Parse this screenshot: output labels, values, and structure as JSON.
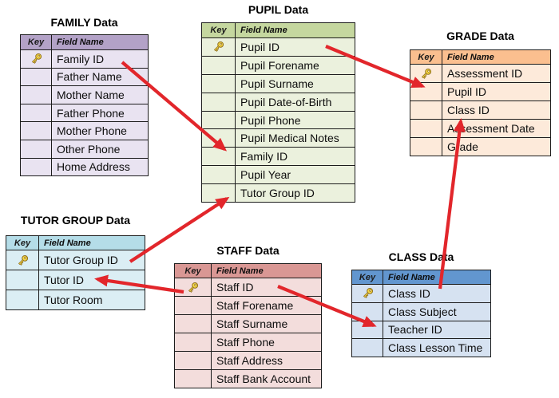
{
  "arrow_color": "#E2262B",
  "tables": [
    {
      "id": "family",
      "title": "FAMILY Data",
      "key_header": "Key",
      "field_header": "Field Name",
      "header_color": "#B3A2C7",
      "row_color": "#E9E3F1",
      "fields": [
        {
          "name": "Family ID",
          "key": true
        },
        {
          "name": "Father Name",
          "key": false
        },
        {
          "name": "Mother Name",
          "key": false
        },
        {
          "name": "Father Phone",
          "key": false
        },
        {
          "name": "Mother Phone",
          "key": false
        },
        {
          "name": "Other Phone",
          "key": false
        },
        {
          "name": "Home Address",
          "key": false
        }
      ]
    },
    {
      "id": "pupil",
      "title": "PUPIL Data",
      "key_header": "Key",
      "field_header": "Field Name",
      "header_color": "#C5D79F",
      "row_color": "#EBF1DD",
      "fields": [
        {
          "name": "Pupil ID",
          "key": true
        },
        {
          "name": "Pupil Forename",
          "key": false
        },
        {
          "name": "Pupil Surname",
          "key": false
        },
        {
          "name": "Pupil Date-of-Birth",
          "key": false
        },
        {
          "name": "Pupil Phone",
          "key": false
        },
        {
          "name": "Pupil Medical Notes",
          "key": false
        },
        {
          "name": "Family ID",
          "key": false
        },
        {
          "name": "Pupil Year",
          "key": false
        },
        {
          "name": "Tutor Group ID",
          "key": false
        }
      ]
    },
    {
      "id": "grade",
      "title": "GRADE Data",
      "key_header": "Key",
      "field_header": "Field Name",
      "header_color": "#FBBF8F",
      "row_color": "#FDEADA",
      "fields": [
        {
          "name": "Assessment ID",
          "key": true
        },
        {
          "name": "Pupil ID",
          "key": false
        },
        {
          "name": "Class ID",
          "key": false
        },
        {
          "name": "Assessment Date",
          "key": false
        },
        {
          "name": "Grade",
          "key": false
        }
      ]
    },
    {
      "id": "tutor_group",
      "title": "TUTOR GROUP Data",
      "key_header": "Key",
      "field_header": "Field Name",
      "header_color": "#B5DDE8",
      "row_color": "#DBEEF4",
      "fields": [
        {
          "name": "Tutor Group ID",
          "key": true
        },
        {
          "name": "Tutor ID",
          "key": false
        },
        {
          "name": "Tutor Room",
          "key": false
        }
      ]
    },
    {
      "id": "staff",
      "title": "STAFF Data",
      "key_header": "Key",
      "field_header": "Field Name",
      "header_color": "#D99794",
      "row_color": "#F3DDDC",
      "fields": [
        {
          "name": "Staff ID",
          "key": true
        },
        {
          "name": "Staff Forename",
          "key": false
        },
        {
          "name": "Staff Surname",
          "key": false
        },
        {
          "name": "Staff Phone",
          "key": false
        },
        {
          "name": "Staff Address",
          "key": false
        },
        {
          "name": "Staff Bank Account",
          "key": false
        }
      ]
    },
    {
      "id": "class",
      "title": "CLASS Data",
      "key_header": "Key",
      "field_header": "Field Name",
      "header_color": "#6296CF",
      "row_color": "#D6E2F1",
      "fields": [
        {
          "name": "Class ID",
          "key": true
        },
        {
          "name": "Class Subject",
          "key": false
        },
        {
          "name": "Teacher ID",
          "key": false
        },
        {
          "name": "Class Lesson Time",
          "key": false
        }
      ]
    }
  ],
  "relationships": [
    {
      "from": "FAMILY.Family ID",
      "to": "PUPIL.Family ID"
    },
    {
      "from": "PUPIL.Pupil ID",
      "to": "GRADE.Pupil ID"
    },
    {
      "from": "TUTOR GROUP.Tutor Group ID",
      "to": "PUPIL.Tutor Group ID"
    },
    {
      "from": "STAFF.Staff ID",
      "to": "TUTOR GROUP.Tutor ID"
    },
    {
      "from": "STAFF.Staff ID",
      "to": "CLASS.Teacher ID"
    },
    {
      "from": "CLASS.Class ID",
      "to": "GRADE.Class ID"
    }
  ]
}
